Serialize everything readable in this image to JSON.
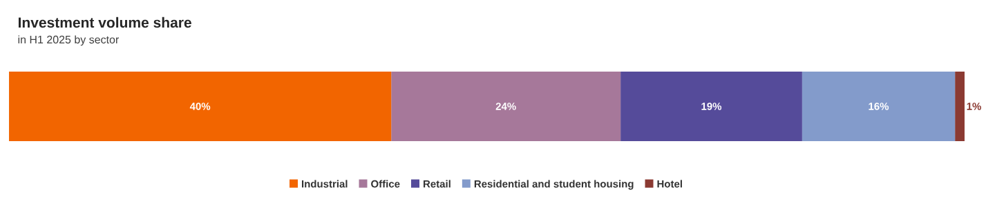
{
  "chart_data": {
    "type": "bar",
    "orientation": "horizontal",
    "stacked": true,
    "title": "Investment volume share",
    "subtitle": "in H1 2025 by sector",
    "categories": [
      null
    ],
    "series": [
      {
        "name": "Industrial",
        "color": "#f26500",
        "values": [
          40
        ],
        "value_labels": [
          "40%"
        ]
      },
      {
        "name": "Office",
        "color": "#a6789a",
        "values": [
          24
        ],
        "value_labels": [
          "24%"
        ]
      },
      {
        "name": "Retail",
        "color": "#554b9a",
        "values": [
          19
        ],
        "value_labels": [
          "19%"
        ]
      },
      {
        "name": "Residential and student housing",
        "color": "#839bcb",
        "values": [
          16
        ],
        "value_labels": [
          "16%"
        ]
      },
      {
        "name": "Hotel",
        "color": "#8b3a32",
        "values": [
          1
        ],
        "value_labels": [
          "1%"
        ]
      }
    ],
    "legend": "bottom"
  }
}
